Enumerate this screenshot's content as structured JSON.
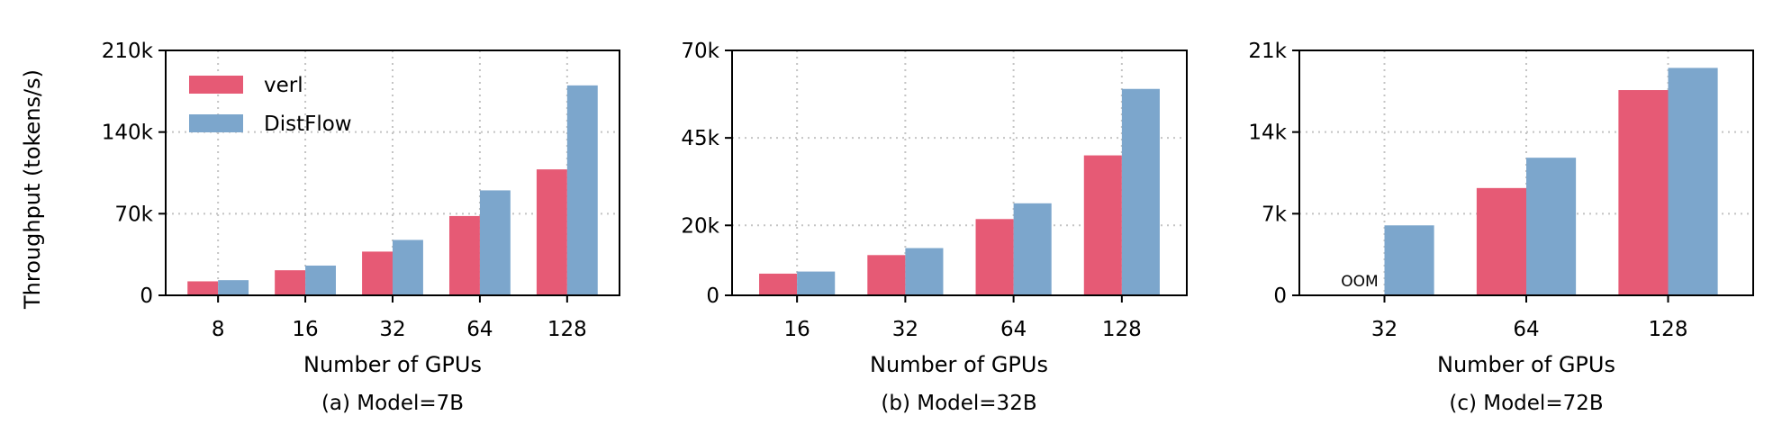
{
  "figure": {
    "ylabel": "Throughput (tokens/s)",
    "legend": {
      "placement": "top-left",
      "entries": [
        "verl",
        "DistFlow"
      ]
    },
    "colors": {
      "verl": "#e65a75",
      "DistFlow": "#7ca6cc",
      "grid": "#c4c4c4"
    }
  },
  "chart_data": [
    {
      "type": "bar",
      "caption": "(a) Model=7B",
      "xlabel": "Number of GPUs",
      "ylabel": "Throughput (tokens/s)",
      "categories": [
        "8",
        "16",
        "32",
        "64",
        "128"
      ],
      "series": [
        {
          "name": "verl",
          "values": [
            12000,
            21500,
            37500,
            68000,
            108000
          ]
        },
        {
          "name": "DistFlow",
          "values": [
            13000,
            25500,
            47500,
            90000,
            180000
          ]
        }
      ],
      "ylim": [
        0,
        210000
      ],
      "yticks": [
        0,
        70000,
        140000,
        210000
      ],
      "ytick_labels": [
        "0",
        "70k",
        "140k",
        "210k"
      ],
      "grid": true,
      "legend": "top-left"
    },
    {
      "type": "bar",
      "caption": "(b) Model=32B",
      "xlabel": "Number of GPUs",
      "categories": [
        "16",
        "32",
        "64",
        "128"
      ],
      "series": [
        {
          "name": "verl",
          "values": [
            6200,
            11500,
            21800,
            40000
          ]
        },
        {
          "name": "DistFlow",
          "values": [
            6800,
            13500,
            26300,
            59000
          ]
        }
      ],
      "ylim": [
        0,
        70000
      ],
      "yticks": [
        0,
        20000,
        45000,
        70000
      ],
      "ytick_labels": [
        "0",
        "20k",
        "45k",
        "70k"
      ],
      "grid": true
    },
    {
      "type": "bar",
      "caption": "(c) Model=72B",
      "xlabel": "Number of GPUs",
      "categories": [
        "32",
        "64",
        "128"
      ],
      "series": [
        {
          "name": "verl",
          "values": [
            null,
            9200,
            17600
          ]
        },
        {
          "name": "DistFlow",
          "values": [
            6000,
            11800,
            19500
          ]
        }
      ],
      "ylim": [
        0,
        21000
      ],
      "yticks": [
        0,
        7000,
        14000,
        21000
      ],
      "ytick_labels": [
        "0",
        "7k",
        "14k",
        "21k"
      ],
      "grid": true,
      "annotations": [
        {
          "text": "OOM",
          "category": "32",
          "series": "verl"
        }
      ]
    }
  ]
}
